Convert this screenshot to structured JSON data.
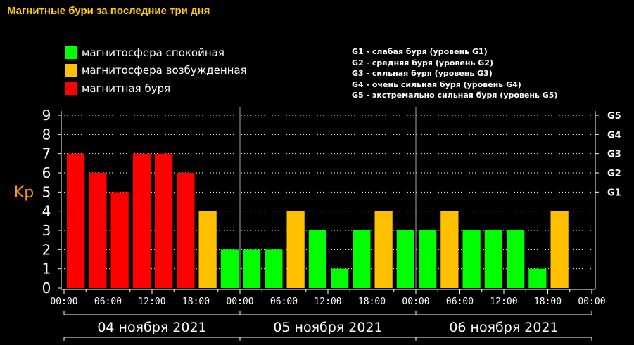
{
  "title": "Магнитные бури за последние три дня",
  "legend": [
    {
      "label": "магнитосфера спокойная",
      "color": "#00ff00"
    },
    {
      "label": "магнитосфера возбужденная",
      "color": "#ffc000"
    },
    {
      "label": "магнитная буря",
      "color": "#ff0000"
    }
  ],
  "storm_levels": [
    "G1 - слабая буря (уровень G1)",
    "G2 - средняя буря (уровень G2)",
    "G3 - сильная буря (уровень G3)",
    "G4 - очень сильная буря (уровень G4)",
    "G5 - экстремально сильная буря (уровень G5)"
  ],
  "colors": {
    "calm": "#00ff00",
    "excited": "#ffc000",
    "storm": "#ff0000",
    "axis_label": "#ff9900",
    "title": "#ffcc00"
  },
  "chart_data": {
    "type": "bar",
    "ylabel": "Kp",
    "ylim": [
      0,
      9
    ],
    "yticks": [
      0,
      1,
      2,
      3,
      4,
      5,
      6,
      7,
      8,
      9
    ],
    "right_axis_ticks": [
      {
        "kp": 5,
        "label": "G1"
      },
      {
        "kp": 6,
        "label": "G2"
      },
      {
        "kp": 7,
        "label": "G3"
      },
      {
        "kp": 8,
        "label": "G4"
      },
      {
        "kp": 9,
        "label": "G5"
      }
    ],
    "x_tick_labels": [
      "00:00",
      "06:00",
      "12:00",
      "18:00",
      "00:00",
      "06:00",
      "12:00",
      "18:00",
      "00:00",
      "06:00",
      "12:00",
      "18:00",
      "00:00"
    ],
    "days": [
      "04 ноября 2021",
      "05 ноября 2021",
      "06 ноября 2021"
    ],
    "bar_interval_hours": 3,
    "grid": true,
    "values": [
      7,
      6,
      5,
      7,
      7,
      6,
      4,
      2,
      2,
      2,
      4,
      3,
      1,
      3,
      4,
      3,
      3,
      4,
      3,
      3,
      3,
      1,
      4
    ],
    "status": [
      "storm",
      "storm",
      "storm",
      "storm",
      "storm",
      "storm",
      "excited",
      "calm",
      "calm",
      "calm",
      "excited",
      "calm",
      "calm",
      "calm",
      "excited",
      "calm",
      "calm",
      "excited",
      "calm",
      "calm",
      "calm",
      "calm",
      "excited"
    ]
  }
}
